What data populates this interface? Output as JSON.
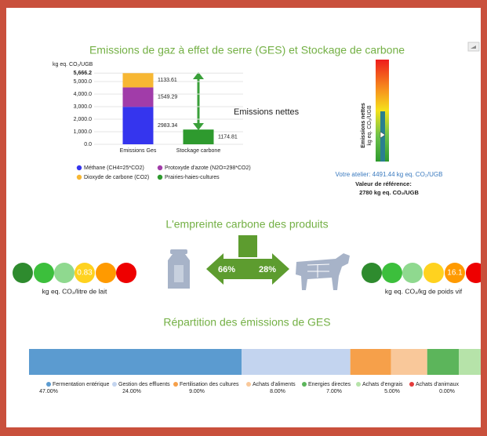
{
  "chart_data": [
    {
      "type": "bar",
      "stacked": true,
      "title": "Emissions de gaz à effet de serre (GES) et Stockage de carbone",
      "y_label": "kg eq. CO₂/UGB",
      "categories": [
        "Emissions Ges",
        "Stockage carbone"
      ],
      "series": [
        {
          "name": "Méthane (CH4=25*CO2)",
          "color": "#3535ee",
          "values": [
            2983.34,
            null
          ]
        },
        {
          "name": "Protoxyde d'azote (N2O=298*CO2)",
          "color": "#a13ca9",
          "values": [
            1549.29,
            null
          ]
        },
        {
          "name": "Dioxyde de carbone (CO2)",
          "color": "#f7b733",
          "values": [
            1133.61,
            null
          ]
        },
        {
          "name": "Prairies-haies-cultures",
          "color": "#2e9a2e",
          "values": [
            null,
            1174.81
          ]
        }
      ],
      "ylim": [
        0,
        5666.2
      ],
      "yticks": [
        {
          "value": 0,
          "label": "0.0"
        },
        {
          "value": 1000,
          "label": "1,000.0"
        },
        {
          "value": 2000,
          "label": "2,000.0"
        },
        {
          "value": 3000,
          "label": "3,000.0"
        },
        {
          "value": 4000,
          "label": "4,000.0"
        },
        {
          "value": 5000,
          "label": "5,000.0"
        },
        {
          "value": 5666.2,
          "label": "5,666.2"
        }
      ],
      "annotation": "Emissions nettes",
      "grid": true
    },
    {
      "type": "gauge",
      "title": "Emissions nettes",
      "unit": "kg eq. CO₂/UGB",
      "value_text": "Votre atelier: 4491.44 kg eq. CO₂/UGB",
      "reference_title": "Valeur de référence:",
      "reference_text": "2780 kg eq. CO₂/UGB"
    },
    {
      "type": "hbar",
      "stacked": true,
      "title": "Répartition des émissions de GES",
      "series": [
        {
          "name": "Fermentation entérique",
          "color": "#5b9bd0",
          "values": [
            47
          ],
          "value_labels": [
            "47.00%"
          ]
        },
        {
          "name": "Gestion des effluents",
          "color": "#c3d4ef",
          "values": [
            24
          ],
          "value_labels": [
            "24.00%"
          ]
        },
        {
          "name": "Fertilisation des cultures",
          "color": "#f6a04a",
          "values": [
            9
          ],
          "value_labels": [
            "9.00%"
          ]
        },
        {
          "name": "Achats d'aliments",
          "color": "#f9c89a",
          "values": [
            8
          ],
          "value_labels": [
            "8.00%"
          ]
        },
        {
          "name": "Energies directes",
          "color": "#5cb55b",
          "values": [
            7
          ],
          "value_labels": [
            "7.00%"
          ]
        },
        {
          "name": "Achats d'engrais",
          "color": "#b6e3a9",
          "values": [
            5
          ],
          "value_labels": [
            "5.00%"
          ]
        },
        {
          "name": "Achats d'animaux",
          "color": "#e43b3b",
          "values": [
            0
          ],
          "value_labels": [
            "0.00%"
          ]
        }
      ]
    }
  ],
  "footprint": {
    "title": "L'empreinte carbone des produits",
    "milk": {
      "value": "0.83",
      "unit": "kg eq. CO₂/litre de lait"
    },
    "meat": {
      "value": "16.1",
      "unit": "kg eq. CO₂/kg de poids vif"
    },
    "milk_share": "66%",
    "meat_share": "28%"
  }
}
